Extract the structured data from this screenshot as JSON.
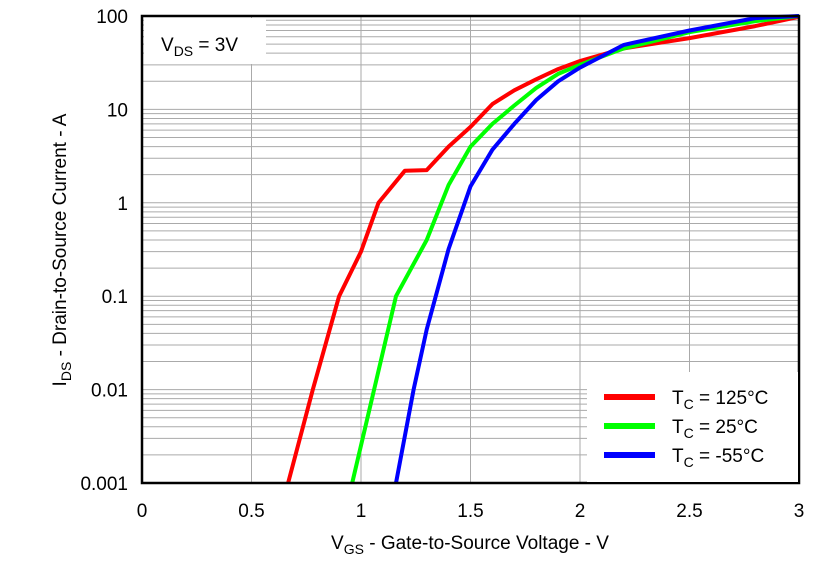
{
  "chart_data": {
    "type": "line",
    "xlabel": {
      "main": "V",
      "sub": "GS",
      "rest": " - Gate-to-Source Voltage - V"
    },
    "ylabel": {
      "main": "I",
      "sub": "DS",
      "rest": " - Drain-to-Source Current - A"
    },
    "xlim": [
      0,
      3
    ],
    "ylim": [
      0.001,
      100
    ],
    "yscale": "log",
    "grid": true,
    "x_ticks": [
      0,
      0.5,
      1,
      1.5,
      2,
      2.5,
      3
    ],
    "x_tick_labels": [
      "0",
      "0.5",
      "1",
      "1.5",
      "2",
      "2.5",
      "3"
    ],
    "y_ticks": [
      0.001,
      0.01,
      0.1,
      1,
      10,
      100
    ],
    "y_tick_labels": [
      "0.001",
      "0.01",
      "0.1",
      "1",
      "10",
      "100"
    ],
    "annotation": {
      "main": "V",
      "sub": "DS",
      "rest": " = 3V"
    },
    "legend_position": "bottom-right",
    "series": [
      {
        "name": {
          "main": "T",
          "sub": "C",
          "rest": " = 125°C"
        },
        "color": "#ff0000",
        "x": [
          0.667,
          0.78,
          0.9,
          1.0,
          1.08,
          1.2,
          1.3,
          1.4,
          1.5,
          1.6,
          1.7,
          1.8,
          1.9,
          2.0,
          2.2,
          2.5,
          2.8,
          3.0
        ],
        "y": [
          0.001,
          0.01,
          0.1,
          0.3,
          1.0,
          2.2,
          2.24,
          4.0,
          6.5,
          11.4,
          16,
          21,
          27,
          33,
          45,
          58,
          78,
          98
        ]
      },
      {
        "name": {
          "main": "T",
          "sub": "C",
          "rest": " = 25°C"
        },
        "color": "#00ff00",
        "x": [
          0.96,
          1.06,
          1.16,
          1.3,
          1.4,
          1.5,
          1.6,
          1.7,
          1.8,
          1.9,
          2.0,
          2.2,
          2.5,
          2.8,
          3.0
        ],
        "y": [
          0.001,
          0.01,
          0.1,
          0.4,
          1.55,
          4.0,
          7.0,
          11,
          17,
          24,
          30,
          45,
          67,
          88,
          100
        ]
      },
      {
        "name": {
          "main": "T",
          "sub": "C",
          "rest": " = -55°C"
        },
        "color": "#0000ff",
        "x": [
          1.16,
          1.24,
          1.3,
          1.4,
          1.5,
          1.6,
          1.7,
          1.8,
          1.9,
          2.0,
          2.2,
          2.5,
          2.8,
          3.0
        ],
        "y": [
          0.001,
          0.01,
          0.044,
          0.32,
          1.5,
          3.7,
          7.0,
          12.6,
          20,
          28,
          49,
          70,
          95,
          100
        ]
      }
    ]
  }
}
